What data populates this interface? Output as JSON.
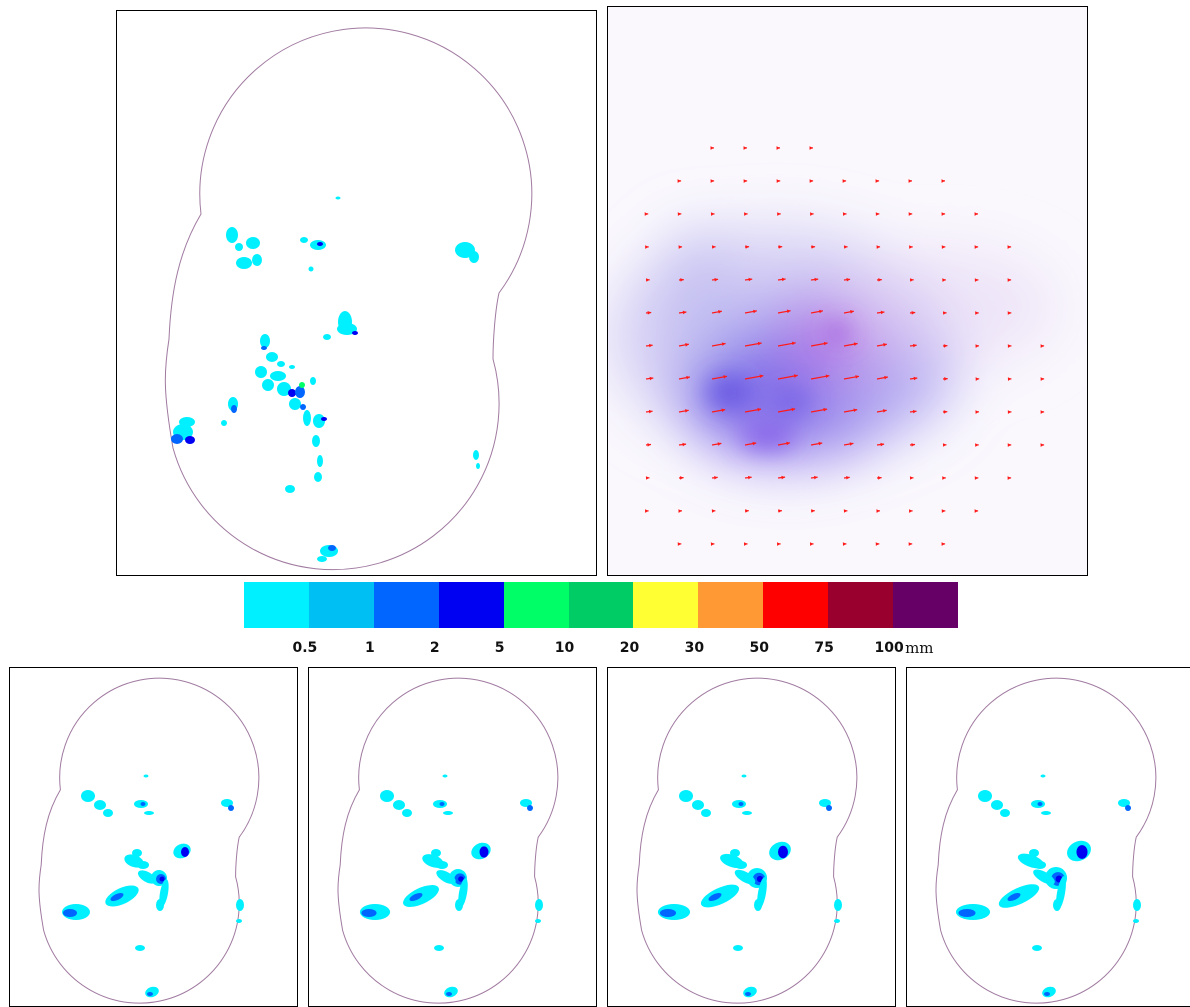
{
  "colorbar": {
    "colors": [
      "#00f0ff",
      "#00bff2",
      "#0066ff",
      "#0000f2",
      "#00ff66",
      "#00cc66",
      "#ffff33",
      "#ff9933",
      "#ff0000",
      "#99002e",
      "#660066"
    ],
    "levels": [
      "0.5",
      "1",
      "2",
      "5",
      "10",
      "20",
      "30",
      "50",
      "75",
      "100"
    ],
    "unit": "mm"
  },
  "colors": {
    "outline": "#a07aa0",
    "vector": "#ff1a1a",
    "light_cyan": "#00f0ff",
    "mid_blue": "#0066ff",
    "dark_blue": "#0000f2",
    "green": "#00ff66"
  },
  "panels": {
    "main": "Rainfall accumulation map (outline + rainfall cells)",
    "flow": "Motion vector field over radar intensity",
    "small": [
      "Forecast frame 1",
      "Forecast frame 2",
      "Forecast frame 3",
      "Forecast frame 4"
    ]
  }
}
